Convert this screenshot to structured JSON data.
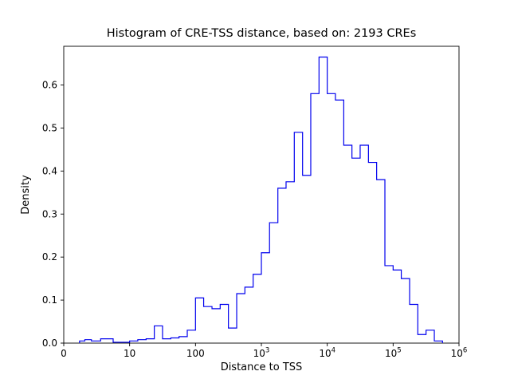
{
  "chart_data": {
    "type": "bar",
    "subtype": "step-histogram",
    "title": "Histogram of CRE-TSS distance, based on: 2193 CREs",
    "xlabel": "Distance to TSS",
    "ylabel": "Density",
    "x_scale": "symlog",
    "grid": false,
    "legend": "none",
    "line_color": "#0000ee",
    "axis_color": "#000000",
    "ylim": [
      0,
      0.69
    ],
    "x_ticks": [
      {
        "value": 0,
        "label": "0"
      },
      {
        "value": 10,
        "label": "10"
      },
      {
        "value": 100,
        "label": "100"
      },
      {
        "value": 1000,
        "label": "10^3"
      },
      {
        "value": 10000,
        "label": "10^4"
      },
      {
        "value": 100000,
        "label": "10^5"
      },
      {
        "value": 1000000,
        "label": "10^6"
      }
    ],
    "y_ticks": [
      0.0,
      0.1,
      0.2,
      0.3,
      0.4,
      0.5,
      0.6
    ],
    "bin_edges": [
      2.4,
      3.2,
      4.2,
      5.6,
      7.5,
      10,
      13.3,
      17.8,
      23.7,
      31.6,
      42.2,
      56.2,
      75,
      100,
      133,
      178,
      237,
      316,
      422,
      562,
      750,
      1000,
      1330,
      1780,
      2370,
      3160,
      4220,
      5620,
      7500,
      10000,
      13300,
      17800,
      23700,
      31600,
      42200,
      56200,
      75000,
      100000,
      133000,
      178000,
      237000,
      316000,
      422000,
      562000
    ],
    "densities": [
      0.005,
      0.008,
      0.005,
      0.01,
      0.002,
      0.005,
      0.008,
      0.01,
      0.04,
      0.01,
      0.012,
      0.015,
      0.03,
      0.105,
      0.085,
      0.08,
      0.09,
      0.035,
      0.115,
      0.13,
      0.16,
      0.21,
      0.28,
      0.36,
      0.375,
      0.49,
      0.39,
      0.58,
      0.665,
      0.58,
      0.565,
      0.46,
      0.43,
      0.46,
      0.42,
      0.38,
      0.18,
      0.17,
      0.15,
      0.09,
      0.02,
      0.03,
      0.005
    ]
  }
}
